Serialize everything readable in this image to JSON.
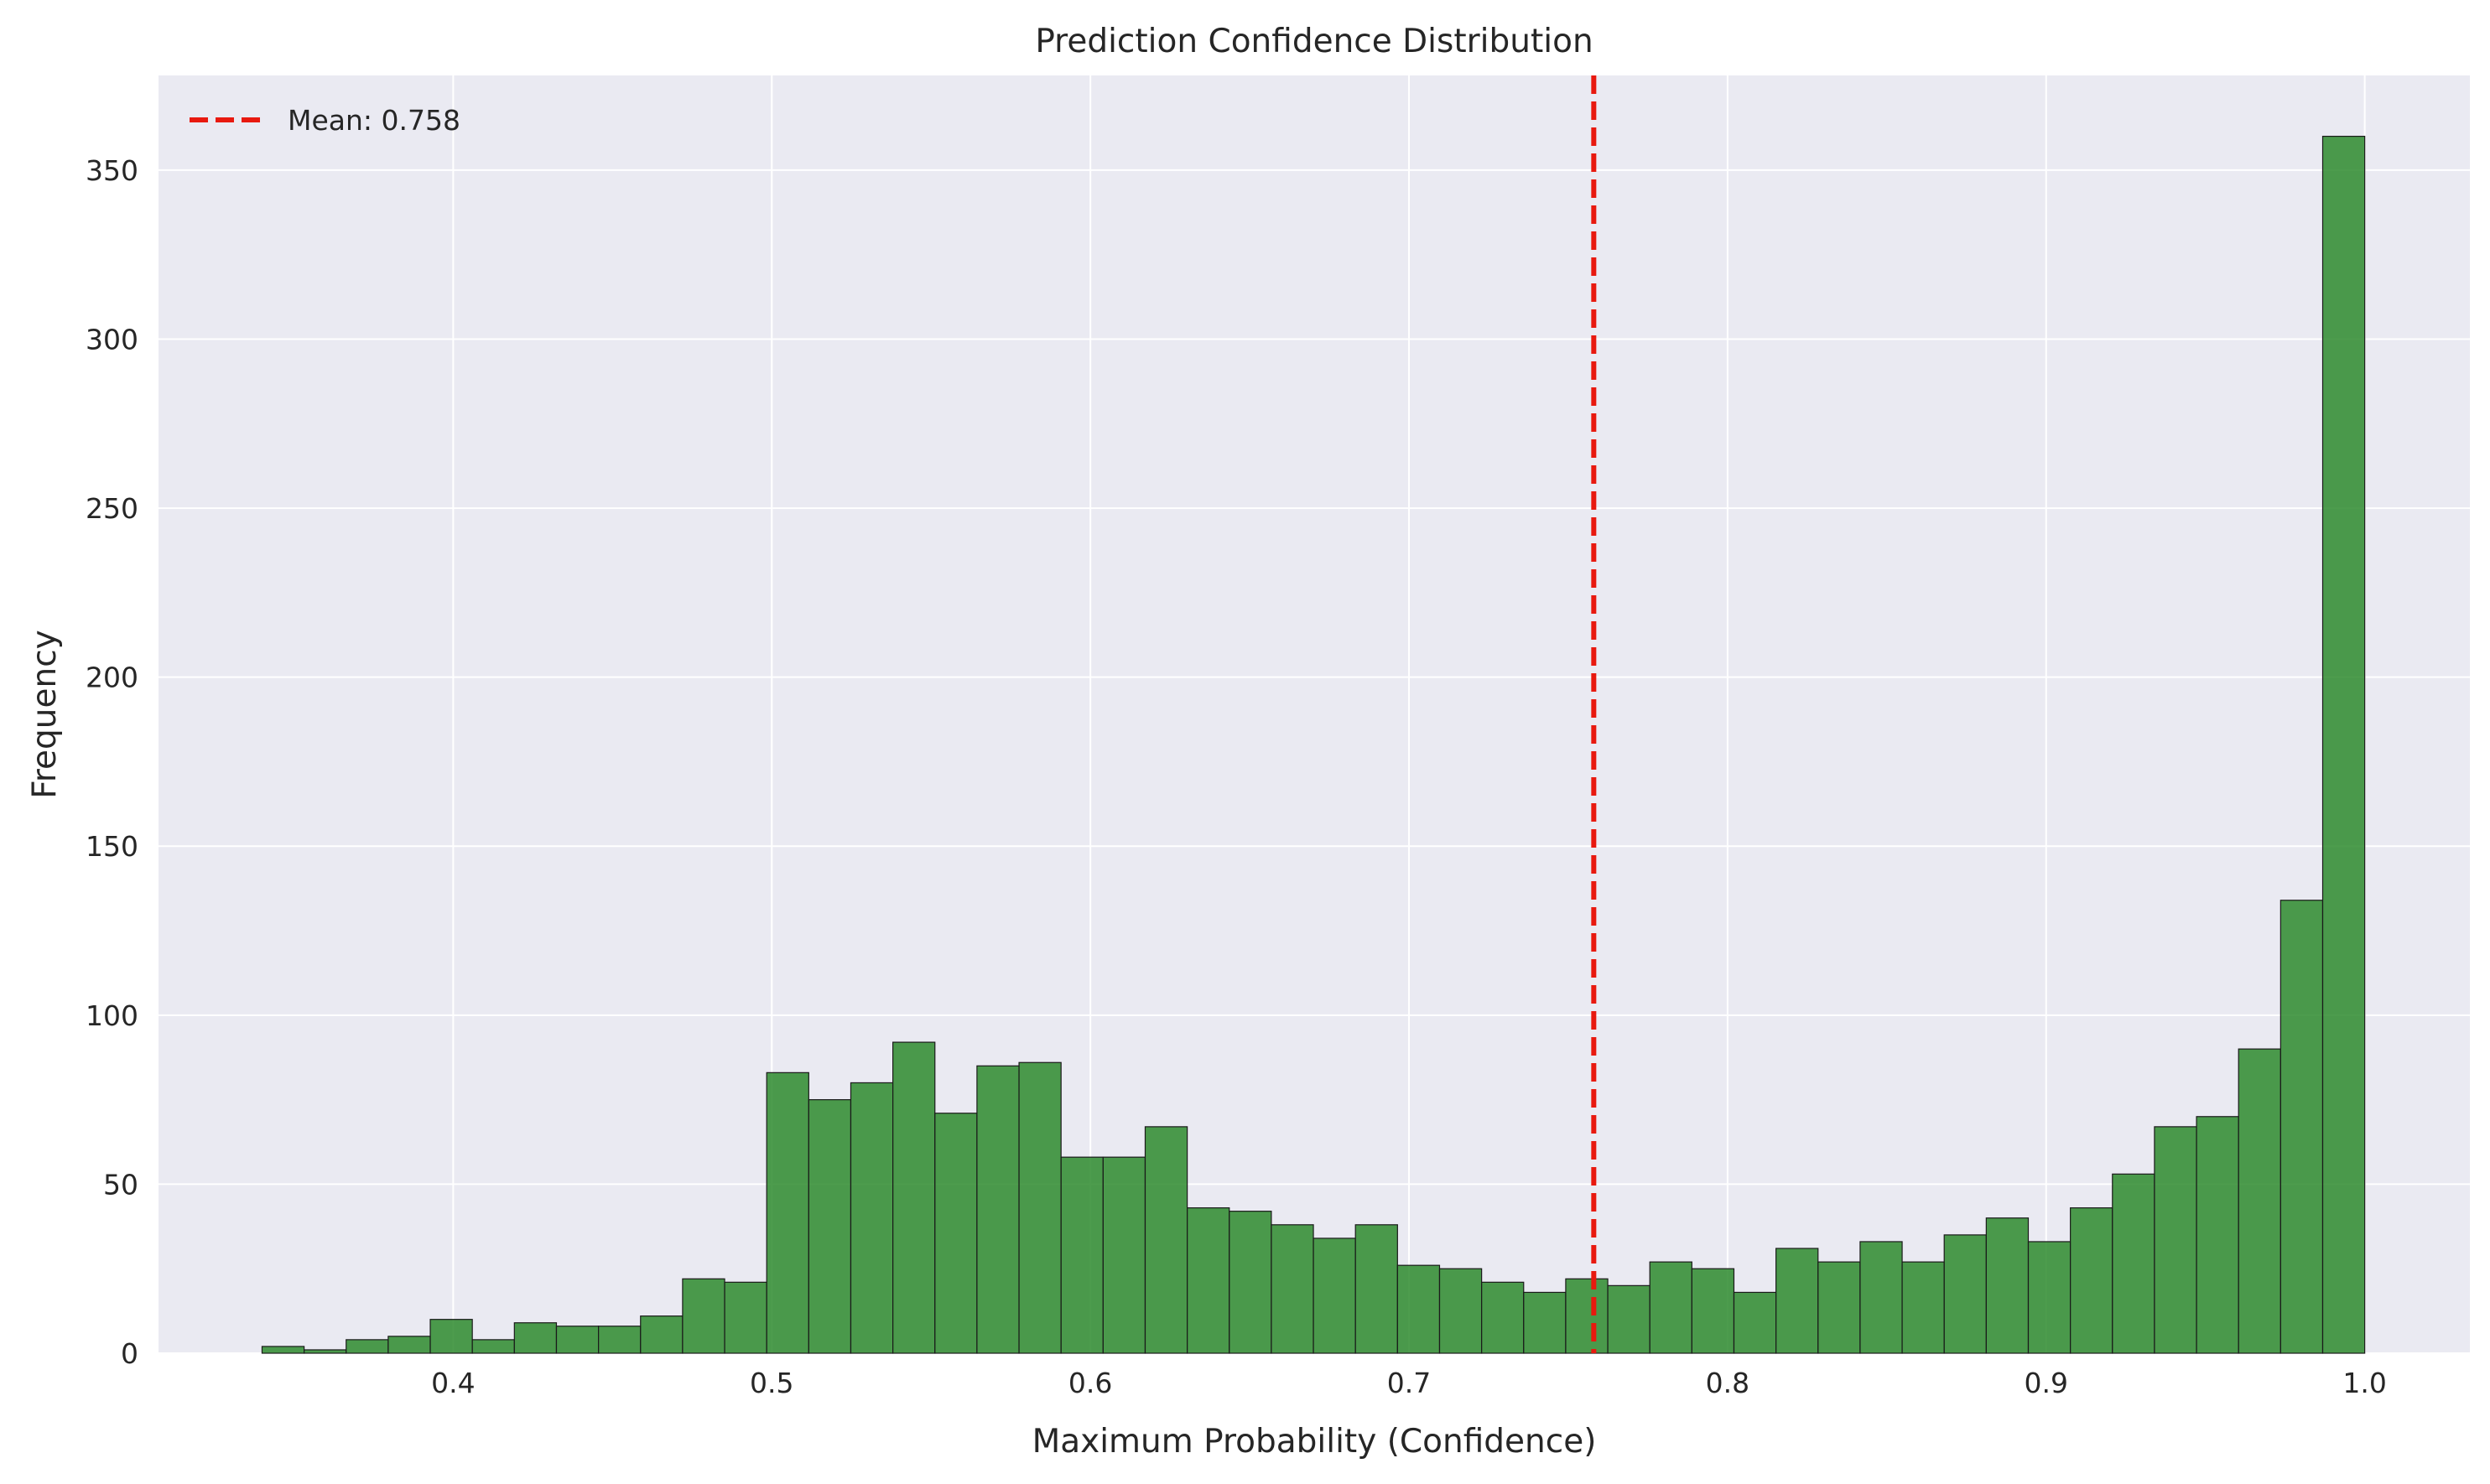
{
  "chart_data": {
    "type": "bar",
    "title": "Prediction Confidence Distribution",
    "xlabel": "Maximum Probability (Confidence)",
    "ylabel": "Frequency",
    "xlim": [
      0.3075,
      1.033
    ],
    "ylim": [
      0,
      378
    ],
    "xticks": [
      0.4,
      0.5,
      0.6,
      0.7,
      0.8,
      0.9,
      1.0
    ],
    "xtick_labels": [
      "0.4",
      "0.5",
      "0.6",
      "0.7",
      "0.8",
      "0.9",
      "1.0"
    ],
    "yticks": [
      0,
      50,
      100,
      150,
      200,
      250,
      300,
      350
    ],
    "ytick_labels": [
      "0",
      "50",
      "100",
      "150",
      "200",
      "250",
      "300",
      "350"
    ],
    "grid": true,
    "legend_position": "top-left",
    "bin_edges": [
      0.34,
      0.3532,
      0.3664,
      0.3796,
      0.3928,
      0.406,
      0.4192,
      0.4324,
      0.4456,
      0.4588,
      0.472,
      0.4852,
      0.4984,
      0.5116,
      0.5248,
      0.538,
      0.5512,
      0.5644,
      0.5776,
      0.5908,
      0.604,
      0.6172,
      0.6304,
      0.6436,
      0.6568,
      0.67,
      0.6832,
      0.6964,
      0.7096,
      0.7228,
      0.736,
      0.7492,
      0.7624,
      0.7756,
      0.7888,
      0.802,
      0.8152,
      0.8284,
      0.8416,
      0.8548,
      0.868,
      0.8812,
      0.8944,
      0.9076,
      0.9208,
      0.934,
      0.9472,
      0.9604,
      0.9736,
      0.9868,
      1.0
    ],
    "values": [
      2,
      1,
      4,
      5,
      10,
      4,
      9,
      8,
      8,
      11,
      22,
      21,
      83,
      75,
      80,
      92,
      71,
      85,
      86,
      58,
      58,
      67,
      43,
      42,
      38,
      34,
      38,
      26,
      25,
      21,
      18,
      22,
      20,
      27,
      25,
      18,
      31,
      27,
      33,
      27,
      35,
      40,
      33,
      43,
      53,
      67,
      70,
      90,
      134,
      360
    ],
    "bar_color": "#2e8b2e",
    "bar_edge_color": "#1a1a1a",
    "mean_line": {
      "x": 0.758,
      "label": "Mean: 0.758",
      "color": "#e8190f"
    },
    "colors": {
      "plot_background": "#eaeaf2",
      "grid": "#ffffff",
      "text": "#262626"
    }
  }
}
